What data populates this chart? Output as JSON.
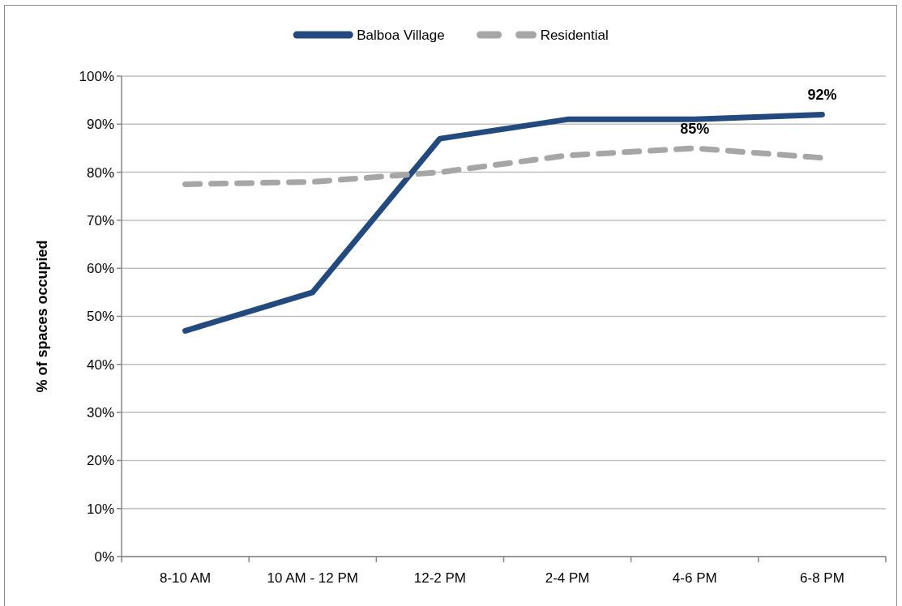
{
  "chart_data": {
    "type": "line",
    "ylabel": "% of spaces occupied",
    "categories": [
      "8-10 AM",
      "10 AM - 12 PM",
      "12-2 PM",
      "2-4 PM",
      "4-6 PM",
      "6-8 PM"
    ],
    "series": [
      {
        "name": "Balboa Village",
        "color": "#234a7e",
        "line_style": "solid",
        "values": [
          47,
          55,
          87,
          91,
          91,
          92
        ],
        "value_labels": [
          null,
          null,
          null,
          null,
          null,
          "92%"
        ]
      },
      {
        "name": "Residential",
        "color": "#a6a6a6",
        "line_style": "dashed",
        "values": [
          77.5,
          78,
          80,
          83.5,
          85,
          83
        ],
        "value_labels": [
          null,
          null,
          null,
          null,
          "85%",
          null
        ]
      }
    ],
    "ylim": [
      0,
      100
    ],
    "yticks": [
      {
        "value": 0,
        "label": "0%"
      },
      {
        "value": 10,
        "label": "10%"
      },
      {
        "value": 20,
        "label": "20%"
      },
      {
        "value": 30,
        "label": "30%"
      },
      {
        "value": 40,
        "label": "40%"
      },
      {
        "value": 50,
        "label": "50%"
      },
      {
        "value": 60,
        "label": "60%"
      },
      {
        "value": 70,
        "label": "70%"
      },
      {
        "value": 80,
        "label": "80%"
      },
      {
        "value": 90,
        "label": "90%"
      },
      {
        "value": 100,
        "label": "100%"
      }
    ],
    "grid": "y",
    "legend": "top"
  }
}
